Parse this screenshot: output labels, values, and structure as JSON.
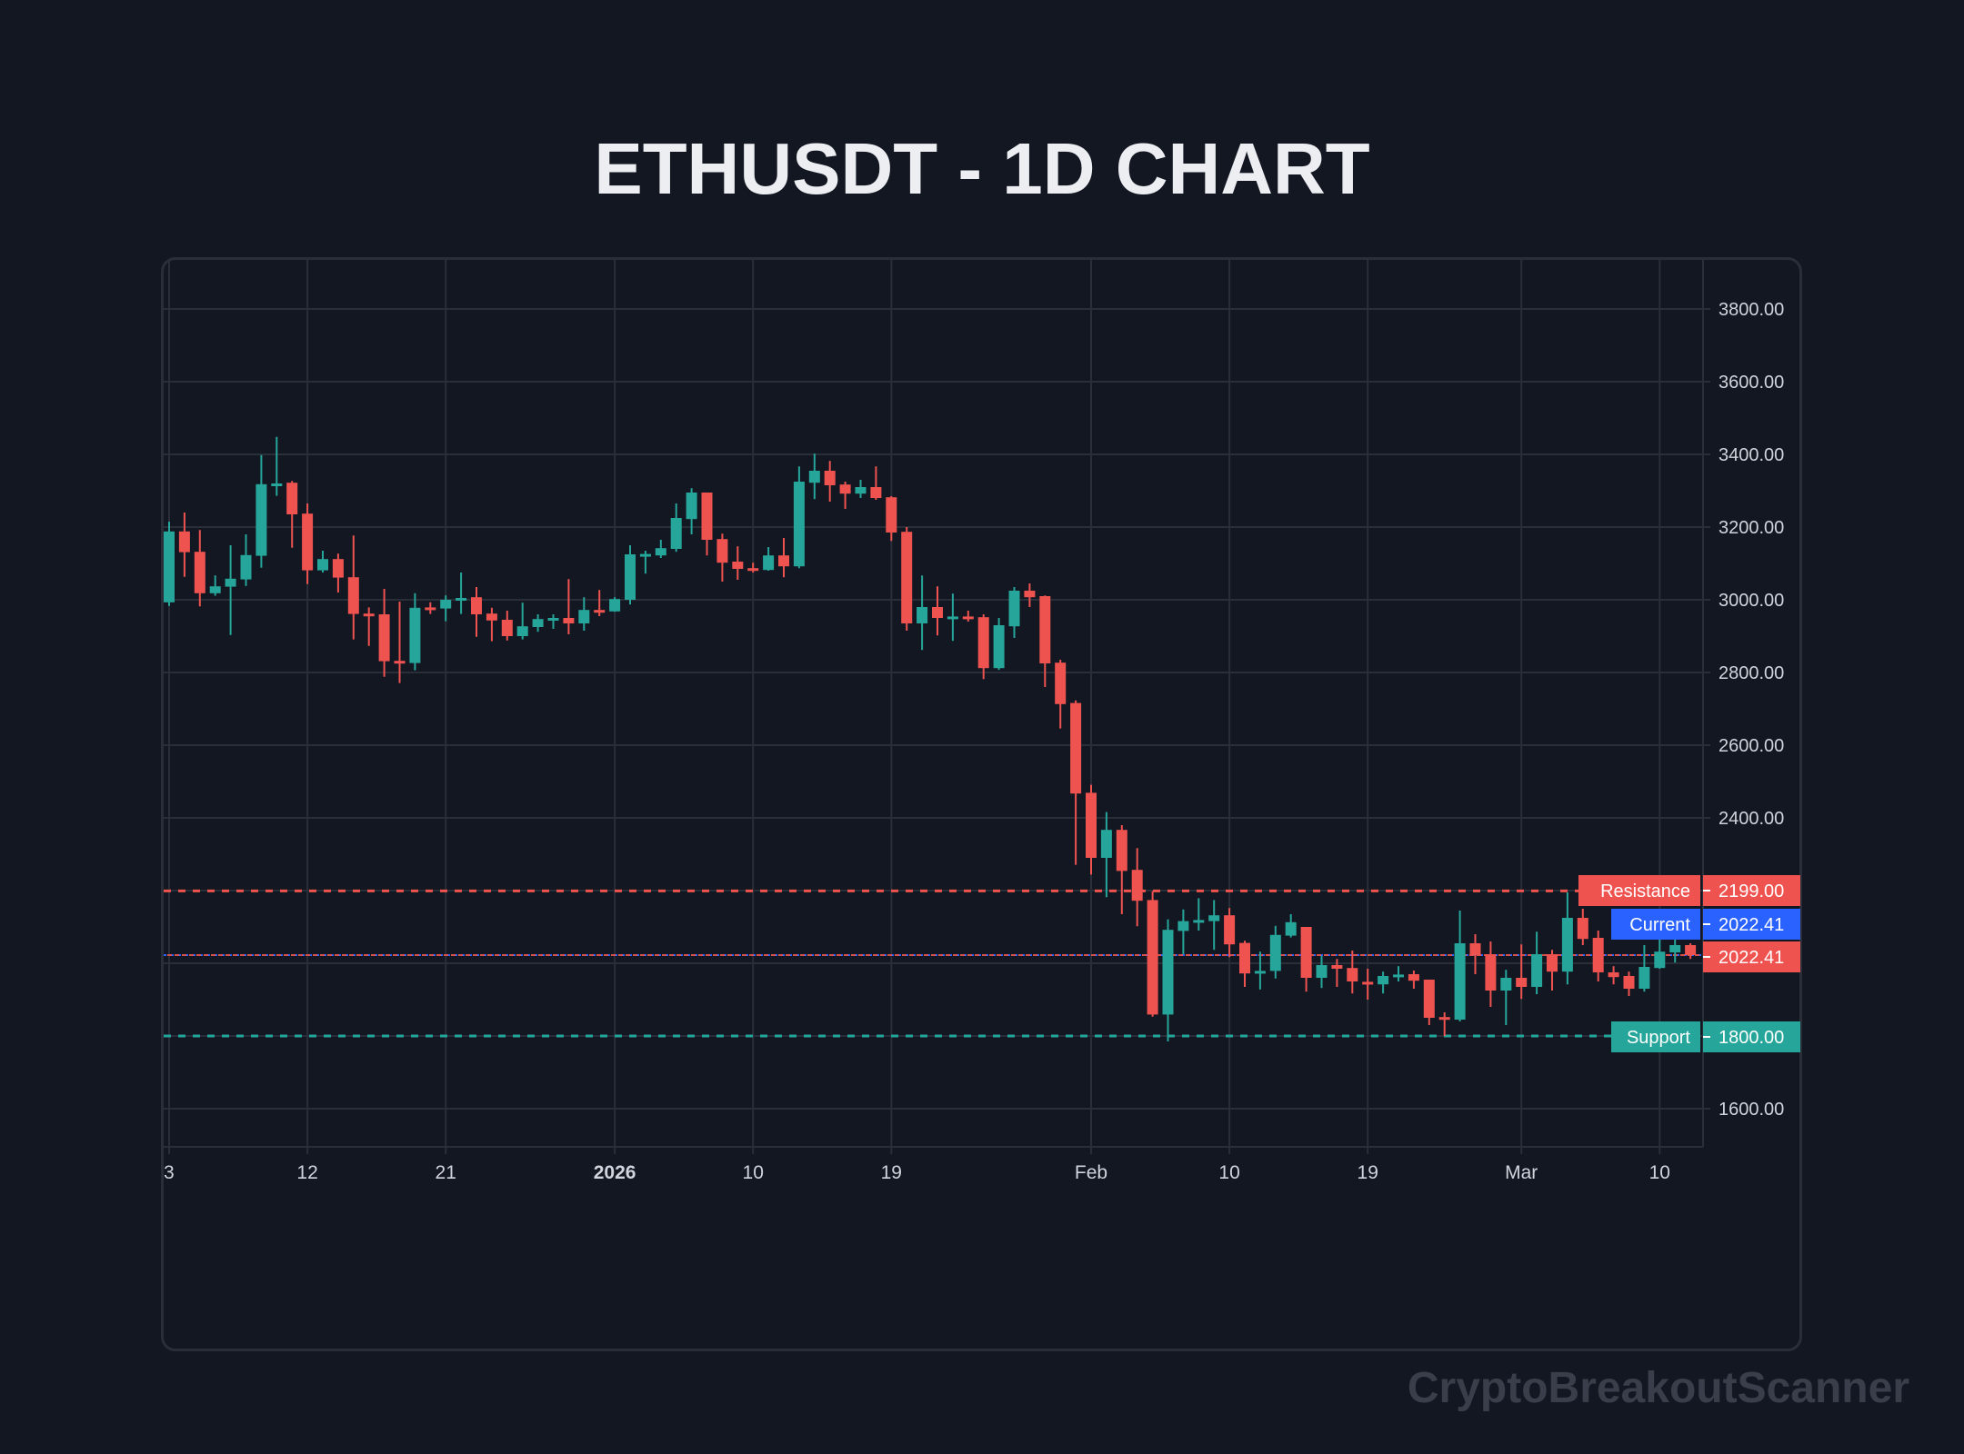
{
  "title": "ETHUSDT - 1D CHART",
  "watermark": "CryptoBreakoutScanner",
  "colors": {
    "background": "#131722",
    "grid": "#2a2e39",
    "up": "#26a69a",
    "down": "#ef5350",
    "current": "#2962ff",
    "text": "#d1d4dc",
    "title": "#eceef2",
    "watermark": "#3a3e4a"
  },
  "levels": {
    "resistance": {
      "label": "Resistance",
      "value": "2199.00",
      "price": 2199.0
    },
    "current": {
      "label": "Current",
      "value": "2022.41",
      "price": 2022.41
    },
    "last": {
      "value": "2022.41",
      "price": 2022.41
    },
    "support": {
      "label": "Support",
      "value": "1800.00",
      "price": 1800.0
    }
  },
  "chart_data": {
    "type": "candlestick",
    "title": "ETHUSDT - 1D CHART",
    "symbol": "ETHUSDT",
    "interval": "1D",
    "xlabel": "",
    "ylabel": "",
    "ylim": [
      1500,
      3900
    ],
    "grid": true,
    "y_ticks": [
      "3800.00",
      "3600.00",
      "3400.00",
      "3200.00",
      "3000.00",
      "2800.00",
      "2600.00",
      "2400.00",
      "1600.00"
    ],
    "y_tick_values": [
      3800,
      3600,
      3400,
      3200,
      3000,
      2800,
      2600,
      2400,
      1600
    ],
    "x_ticks": [
      {
        "label": "3",
        "day": 0,
        "bold": false
      },
      {
        "label": "12",
        "day": 9,
        "bold": false
      },
      {
        "label": "21",
        "day": 18,
        "bold": false
      },
      {
        "label": "2026",
        "day": 29,
        "bold": true
      },
      {
        "label": "10",
        "day": 38,
        "bold": false
      },
      {
        "label": "19",
        "day": 47,
        "bold": false
      },
      {
        "label": "Feb",
        "day": 60,
        "bold": false
      },
      {
        "label": "10",
        "day": 69,
        "bold": false
      },
      {
        "label": "19",
        "day": 78,
        "bold": false
      },
      {
        "label": "Mar",
        "day": 88,
        "bold": false
      },
      {
        "label": "10",
        "day": 97,
        "bold": false
      }
    ],
    "horizontal_lines": [
      {
        "name": "Resistance",
        "value": 2199.0,
        "style": "dashed",
        "color": "#ef5350"
      },
      {
        "name": "Current",
        "value": 2022.41,
        "style": "dotted",
        "color": "#2962ff"
      },
      {
        "name": "Support",
        "value": 1800.0,
        "style": "dashed",
        "color": "#26a69a"
      }
    ],
    "columns": [
      "date",
      "open",
      "high",
      "low",
      "close"
    ],
    "candles": [
      [
        "2025-12-03",
        2993,
        3215,
        2983,
        3188
      ],
      [
        "2025-12-04",
        3188,
        3240,
        3063,
        3131
      ],
      [
        "2025-12-05",
        3132,
        3192,
        2982,
        3018
      ],
      [
        "2025-12-06",
        3018,
        3067,
        3011,
        3037
      ],
      [
        "2025-12-07",
        3036,
        3150,
        2903,
        3058
      ],
      [
        "2025-12-08",
        3056,
        3180,
        3038,
        3123
      ],
      [
        "2025-12-09",
        3121,
        3398,
        3088,
        3318
      ],
      [
        "2025-12-10",
        3316,
        3448,
        3286,
        3320
      ],
      [
        "2025-12-11",
        3322,
        3327,
        3143,
        3235
      ],
      [
        "2025-12-12",
        3237,
        3265,
        3043,
        3081
      ],
      [
        "2025-12-13",
        3081,
        3135,
        3075,
        3112
      ],
      [
        "2025-12-14",
        3112,
        3127,
        3020,
        3061
      ],
      [
        "2025-12-15",
        3062,
        3177,
        2891,
        2961
      ],
      [
        "2025-12-16",
        2962,
        2979,
        2873,
        2958
      ],
      [
        "2025-12-17",
        2960,
        3030,
        2788,
        2831
      ],
      [
        "2025-12-18",
        2832,
        2995,
        2771,
        2828
      ],
      [
        "2025-12-19",
        2826,
        3018,
        2806,
        2978
      ],
      [
        "2025-12-20",
        2979,
        2993,
        2961,
        2975
      ],
      [
        "2025-12-21",
        2976,
        3012,
        2941,
        3000
      ],
      [
        "2025-12-22",
        3001,
        3075,
        2961,
        3005
      ],
      [
        "2025-12-23",
        3007,
        3035,
        2898,
        2960
      ],
      [
        "2025-12-24",
        2962,
        2978,
        2886,
        2943
      ],
      [
        "2025-12-25",
        2945,
        2970,
        2888,
        2900
      ],
      [
        "2025-12-26",
        2900,
        2992,
        2891,
        2927
      ],
      [
        "2025-12-27",
        2925,
        2960,
        2912,
        2947
      ],
      [
        "2025-12-28",
        2946,
        2960,
        2920,
        2950
      ],
      [
        "2025-12-29",
        2950,
        3057,
        2905,
        2935
      ],
      [
        "2025-12-30",
        2935,
        3007,
        2915,
        2972
      ],
      [
        "2025-12-31",
        2972,
        3027,
        2955,
        2968
      ],
      [
        "2026-01-01",
        2968,
        3007,
        2967,
        3002
      ],
      [
        "2026-01-02",
        3000,
        3150,
        2987,
        3125
      ],
      [
        "2026-01-03",
        3122,
        3135,
        3072,
        3126
      ],
      [
        "2026-01-04",
        3122,
        3165,
        3115,
        3142
      ],
      [
        "2026-01-05",
        3140,
        3265,
        3132,
        3225
      ],
      [
        "2026-01-06",
        3222,
        3307,
        3180,
        3295
      ],
      [
        "2026-01-07",
        3295,
        3295,
        3122,
        3165
      ],
      [
        "2026-01-08",
        3167,
        3182,
        3050,
        3102
      ],
      [
        "2026-01-09",
        3105,
        3147,
        3055,
        3085
      ],
      [
        "2026-01-10",
        3087,
        3102,
        3075,
        3083
      ],
      [
        "2026-01-11",
        3082,
        3145,
        3080,
        3122
      ],
      [
        "2026-01-12",
        3122,
        3170,
        3062,
        3092
      ],
      [
        "2026-01-13",
        3092,
        3367,
        3087,
        3325
      ],
      [
        "2026-01-14",
        3322,
        3402,
        3277,
        3355
      ],
      [
        "2026-01-15",
        3355,
        3382,
        3270,
        3315
      ],
      [
        "2026-01-16",
        3317,
        3325,
        3250,
        3292
      ],
      [
        "2026-01-17",
        3292,
        3330,
        3280,
        3310
      ],
      [
        "2026-01-18",
        3310,
        3367,
        3275,
        3280
      ],
      [
        "2026-01-19",
        3282,
        3285,
        3162,
        3185
      ],
      [
        "2026-01-20",
        3187,
        3200,
        2915,
        2935
      ],
      [
        "2026-01-21",
        2935,
        3067,
        2862,
        2980
      ],
      [
        "2026-01-22",
        2980,
        3037,
        2902,
        2950
      ],
      [
        "2026-01-23",
        2950,
        3017,
        2887,
        2954
      ],
      [
        "2026-01-24",
        2954,
        2970,
        2940,
        2950
      ],
      [
        "2026-01-25",
        2952,
        2960,
        2782,
        2812
      ],
      [
        "2026-01-26",
        2812,
        2950,
        2807,
        2930
      ],
      [
        "2026-01-27",
        2927,
        3035,
        2895,
        3025
      ],
      [
        "2026-01-28",
        3025,
        3045,
        2980,
        3007
      ],
      [
        "2026-01-29",
        3010,
        3012,
        2760,
        2825
      ],
      [
        "2026-01-30",
        2827,
        2835,
        2646,
        2713
      ],
      [
        "2026-01-31",
        2716,
        2723,
        2271,
        2467
      ],
      [
        "2026-02-01",
        2469,
        2491,
        2244,
        2290
      ],
      [
        "2026-02-02",
        2290,
        2416,
        2182,
        2367
      ],
      [
        "2026-02-03",
        2367,
        2380,
        2135,
        2254
      ],
      [
        "2026-02-04",
        2257,
        2317,
        2102,
        2172
      ],
      [
        "2026-02-05",
        2174,
        2198,
        1853,
        1859
      ],
      [
        "2026-02-06",
        1859,
        2121,
        1785,
        2092
      ],
      [
        "2026-02-07",
        2089,
        2148,
        2025,
        2116
      ],
      [
        "2026-02-08",
        2115,
        2179,
        2090,
        2119
      ],
      [
        "2026-02-09",
        2116,
        2174,
        2037,
        2132
      ],
      [
        "2026-02-10",
        2132,
        2152,
        2017,
        2052
      ],
      [
        "2026-02-11",
        2056,
        2062,
        1935,
        1972
      ],
      [
        "2026-02-12",
        1975,
        2032,
        1928,
        1979
      ],
      [
        "2026-02-13",
        1979,
        2103,
        1958,
        2078
      ],
      [
        "2026-02-14",
        2076,
        2135,
        2071,
        2113
      ],
      [
        "2026-02-15",
        2100,
        2100,
        1922,
        1960
      ],
      [
        "2026-02-16",
        1960,
        2020,
        1932,
        1995
      ],
      [
        "2026-02-17",
        1995,
        2012,
        1935,
        1985
      ],
      [
        "2026-02-18",
        1987,
        2035,
        1917,
        1950
      ],
      [
        "2026-02-19",
        1949,
        1985,
        1900,
        1945
      ],
      [
        "2026-02-20",
        1942,
        1977,
        1917,
        1965
      ],
      [
        "2026-02-21",
        1965,
        1992,
        1950,
        1969
      ],
      [
        "2026-02-22",
        1970,
        1980,
        1930,
        1952
      ],
      [
        "2026-02-23",
        1955,
        1955,
        1830,
        1850
      ],
      [
        "2026-02-24",
        1852,
        1865,
        1800,
        1848
      ],
      [
        "2026-02-25",
        1845,
        2145,
        1840,
        2055
      ],
      [
        "2026-02-26",
        2055,
        2080,
        1970,
        2022
      ],
      [
        "2026-02-27",
        2025,
        2060,
        1880,
        1925
      ],
      [
        "2026-02-28",
        1925,
        1982,
        1830,
        1960
      ],
      [
        "2026-03-01",
        1960,
        2052,
        1902,
        1935
      ],
      [
        "2026-03-02",
        1935,
        2087,
        1915,
        2025
      ],
      [
        "2026-03-03",
        2025,
        2037,
        1925,
        1977
      ],
      [
        "2026-03-04",
        1977,
        2195,
        1942,
        2125
      ],
      [
        "2026-03-05",
        2125,
        2150,
        2050,
        2067
      ],
      [
        "2026-03-06",
        2070,
        2090,
        1950,
        1975
      ],
      [
        "2026-03-07",
        1975,
        1992,
        1942,
        1962
      ],
      [
        "2026-03-08",
        1965,
        1977,
        1910,
        1930
      ],
      [
        "2026-03-09",
        1930,
        2050,
        1922,
        1990
      ],
      [
        "2026-03-10",
        1987,
        2085,
        1985,
        2032
      ],
      [
        "2026-03-11",
        2030,
        2082,
        2002,
        2050
      ],
      [
        "2026-03-12",
        2050,
        2055,
        2012,
        2022.41
      ]
    ]
  }
}
